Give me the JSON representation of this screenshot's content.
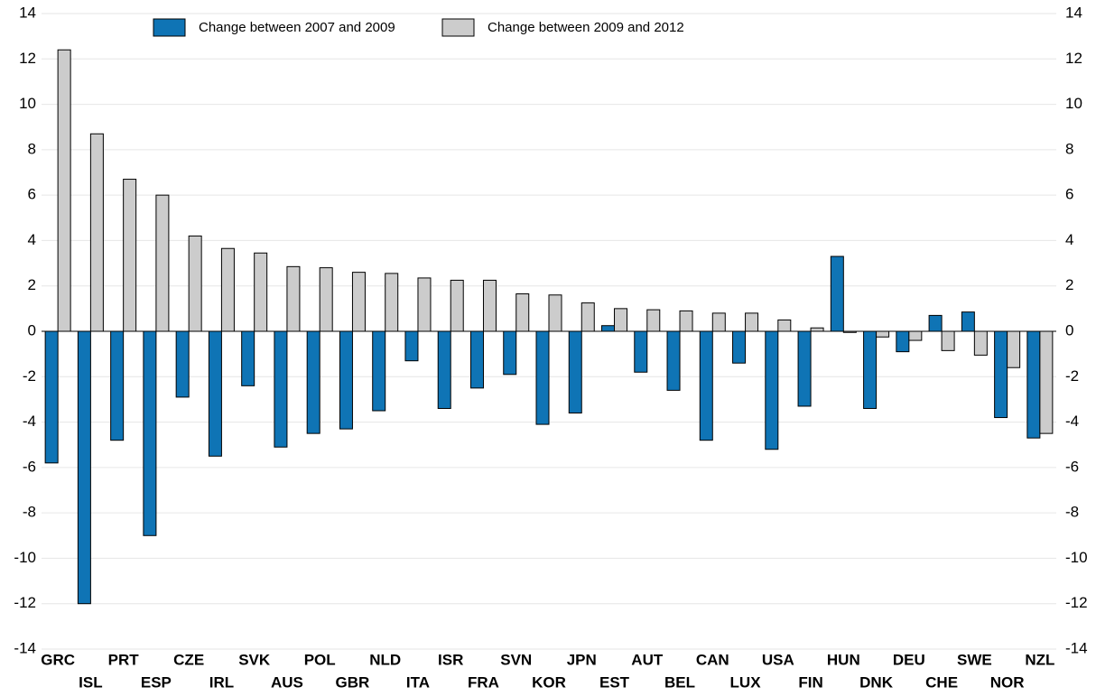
{
  "chart_data": {
    "type": "bar",
    "categories": [
      "GRC",
      "ISL",
      "PRT",
      "ESP",
      "CZE",
      "IRL",
      "SVK",
      "AUS",
      "POL",
      "GBR",
      "NLD",
      "ITA",
      "ISR",
      "FRA",
      "SVN",
      "KOR",
      "JPN",
      "EST",
      "AUT",
      "BEL",
      "CAN",
      "LUX",
      "USA",
      "FIN",
      "HUN",
      "DNK",
      "DEU",
      "CHE",
      "SWE",
      "NOR",
      "NZL"
    ],
    "series": [
      {
        "name": "Change between 2007 and 2009",
        "color": "#0f74b5",
        "values": [
          -5.8,
          -12.0,
          -4.8,
          -9.0,
          -2.9,
          -5.5,
          -2.4,
          -5.1,
          -4.5,
          -4.3,
          -3.5,
          -1.3,
          -3.4,
          -2.5,
          -1.9,
          -4.1,
          -3.6,
          0.25,
          -1.8,
          -2.6,
          -4.8,
          -1.4,
          -5.2,
          -3.3,
          3.3,
          -3.4,
          -0.9,
          0.7,
          0.85,
          -3.8,
          -4.7
        ]
      },
      {
        "name": "Change between 2009 and 2012",
        "color": "#cccccc",
        "values": [
          12.4,
          8.7,
          6.7,
          6.0,
          4.2,
          3.65,
          3.45,
          2.85,
          2.8,
          2.6,
          2.55,
          2.35,
          2.25,
          2.25,
          1.65,
          1.6,
          1.25,
          1.0,
          0.95,
          0.9,
          0.8,
          0.8,
          0.5,
          0.15,
          -0.05,
          -0.25,
          -0.4,
          -0.85,
          -1.05,
          -1.6,
          -4.5
        ]
      }
    ],
    "ylim": [
      -14,
      14
    ],
    "yticks": [
      -14,
      -12,
      -10,
      -8,
      -6,
      -4,
      -2,
      0,
      2,
      4,
      6,
      8,
      10,
      12,
      14
    ],
    "y2lim": [
      -14,
      14
    ],
    "y2ticks": [
      -14,
      -12,
      -10,
      -8,
      -6,
      -4,
      -2,
      0,
      2,
      4,
      6,
      8,
      10,
      12,
      14
    ],
    "grid": true
  }
}
